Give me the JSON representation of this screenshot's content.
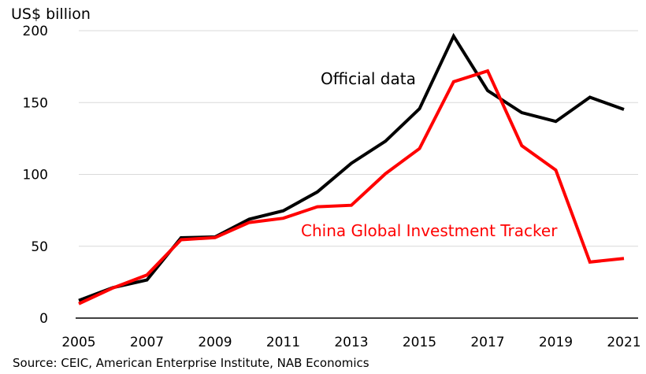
{
  "chart_data": {
    "type": "line",
    "ylabel": "US$ billion",
    "ylim": [
      0,
      200
    ],
    "yticks": [
      0,
      50,
      100,
      150,
      200
    ],
    "x": [
      2005,
      2006,
      2007,
      2008,
      2009,
      2010,
      2011,
      2012,
      2013,
      2014,
      2015,
      2016,
      2017,
      2018,
      2019,
      2020,
      2021
    ],
    "xticks": [
      "2005",
      "2007",
      "2009",
      "2011",
      "2013",
      "2015",
      "2017",
      "2019",
      "2021"
    ],
    "grid": "horizontal",
    "series": [
      {
        "name": "Official data",
        "color": "#000000",
        "values": [
          12.3,
          21.2,
          26.5,
          55.9,
          56.5,
          68.8,
          74.7,
          87.8,
          107.8,
          123.1,
          145.7,
          196.2,
          158.3,
          143.0,
          136.9,
          153.7,
          145.2
        ]
      },
      {
        "name": "China Global Investment Tracker",
        "color": "#ff0000",
        "values": [
          10.0,
          21.0,
          30.0,
          54.5,
          56.0,
          66.5,
          69.5,
          77.5,
          78.5,
          100.5,
          118.0,
          164.5,
          172.0,
          120.0,
          103.0,
          39.0,
          41.5
        ]
      }
    ],
    "source": "Source: CEIC, American Enterprise Institute, NAB Economics"
  }
}
